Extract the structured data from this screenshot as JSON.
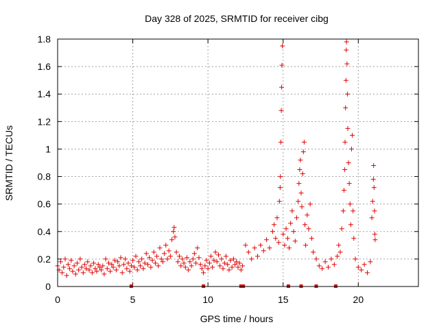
{
  "chart_data": {
    "type": "scatter",
    "title": "Day 328 of 2025, SRMTID for receiver cibg",
    "xlabel": "GPS time / hours",
    "ylabel": "SRMTID / TECUs",
    "xlim": [
      0,
      24
    ],
    "ylim": [
      0,
      1.8
    ],
    "xticks": [
      "0",
      "5",
      "10",
      "15",
      "20"
    ],
    "xtick_values": [
      0,
      5,
      10,
      15,
      20
    ],
    "yticks": [
      "0",
      "0.2",
      "0.4",
      "0.6",
      "0.8",
      "1",
      "1.2",
      "1.4",
      "1.6",
      "1.8"
    ],
    "ytick_values": [
      0,
      0.2,
      0.4,
      0.6,
      0.8,
      1.0,
      1.2,
      1.4,
      1.6,
      1.8
    ],
    "grid": true,
    "marker": "+",
    "color": "#e00000",
    "series": [
      {
        "name": "SRMTID",
        "points": [
          [
            0.0,
            0.15
          ],
          [
            0.1,
            0.12
          ],
          [
            0.2,
            0.18
          ],
          [
            0.3,
            0.1
          ],
          [
            0.4,
            0.14
          ],
          [
            0.5,
            0.2
          ],
          [
            0.6,
            0.08
          ],
          [
            0.7,
            0.16
          ],
          [
            0.8,
            0.13
          ],
          [
            0.9,
            0.19
          ],
          [
            1.0,
            0.11
          ],
          [
            1.1,
            0.15
          ],
          [
            1.2,
            0.09
          ],
          [
            1.3,
            0.17
          ],
          [
            1.4,
            0.12
          ],
          [
            1.5,
            0.2
          ],
          [
            1.6,
            0.14
          ],
          [
            1.7,
            0.1
          ],
          [
            1.8,
            0.16
          ],
          [
            1.9,
            0.13
          ],
          [
            2.0,
            0.18
          ],
          [
            2.1,
            0.12
          ],
          [
            2.2,
            0.15
          ],
          [
            2.3,
            0.1
          ],
          [
            2.4,
            0.17
          ],
          [
            2.5,
            0.13
          ],
          [
            2.6,
            0.11
          ],
          [
            2.7,
            0.16
          ],
          [
            2.8,
            0.14
          ],
          [
            2.9,
            0.12
          ],
          [
            3.0,
            0.15
          ],
          [
            3.1,
            0.09
          ],
          [
            3.2,
            0.2
          ],
          [
            3.3,
            0.13
          ],
          [
            3.4,
            0.17
          ],
          [
            3.5,
            0.11
          ],
          [
            3.6,
            0.16
          ],
          [
            3.7,
            0.14
          ],
          [
            3.8,
            0.19
          ],
          [
            3.9,
            0.12
          ],
          [
            4.0,
            0.18
          ],
          [
            4.1,
            0.15
          ],
          [
            4.2,
            0.21
          ],
          [
            4.3,
            0.1
          ],
          [
            4.4,
            0.16
          ],
          [
            4.5,
            0.2
          ],
          [
            4.6,
            0.13
          ],
          [
            4.7,
            0.17
          ],
          [
            4.8,
            0.11
          ],
          [
            4.9,
            0.15
          ],
          [
            5.0,
            0.19
          ],
          [
            5.1,
            0.14
          ],
          [
            5.2,
            0.22
          ],
          [
            5.3,
            0.12
          ],
          [
            5.4,
            0.18
          ],
          [
            5.5,
            0.15
          ],
          [
            5.6,
            0.2
          ],
          [
            5.7,
            0.13
          ],
          [
            5.8,
            0.17
          ],
          [
            5.9,
            0.24
          ],
          [
            6.0,
            0.16
          ],
          [
            6.1,
            0.21
          ],
          [
            6.2,
            0.14
          ],
          [
            6.3,
            0.19
          ],
          [
            6.4,
            0.25
          ],
          [
            6.5,
            0.17
          ],
          [
            6.6,
            0.22
          ],
          [
            6.7,
            0.15
          ],
          [
            6.8,
            0.28
          ],
          [
            6.9,
            0.2
          ],
          [
            7.0,
            0.18
          ],
          [
            7.1,
            0.24
          ],
          [
            7.2,
            0.3
          ],
          [
            7.3,
            0.2
          ],
          [
            7.4,
            0.26
          ],
          [
            7.5,
            0.22
          ],
          [
            7.6,
            0.34
          ],
          [
            7.7,
            0.4
          ],
          [
            7.75,
            0.43
          ],
          [
            7.8,
            0.36
          ],
          [
            7.9,
            0.25
          ],
          [
            8.0,
            0.18
          ],
          [
            8.1,
            0.22
          ],
          [
            8.2,
            0.15
          ],
          [
            8.3,
            0.2
          ],
          [
            8.4,
            0.17
          ],
          [
            8.5,
            0.14
          ],
          [
            8.6,
            0.21
          ],
          [
            8.7,
            0.12
          ],
          [
            8.8,
            0.18
          ],
          [
            8.9,
            0.15
          ],
          [
            9.0,
            0.2
          ],
          [
            9.1,
            0.24
          ],
          [
            9.2,
            0.17
          ],
          [
            9.3,
            0.28
          ],
          [
            9.4,
            0.21
          ],
          [
            9.5,
            0.16
          ],
          [
            9.6,
            0.13
          ],
          [
            9.7,
            0.1
          ],
          [
            9.8,
            0.15
          ],
          [
            9.9,
            0.19
          ],
          [
            10.0,
            0.13
          ],
          [
            10.1,
            0.17
          ],
          [
            10.2,
            0.22
          ],
          [
            10.3,
            0.14
          ],
          [
            10.4,
            0.19
          ],
          [
            10.5,
            0.25
          ],
          [
            10.6,
            0.18
          ],
          [
            10.7,
            0.23
          ],
          [
            10.8,
            0.15
          ],
          [
            10.9,
            0.2
          ],
          [
            11.0,
            0.13
          ],
          [
            11.1,
            0.17
          ],
          [
            11.2,
            0.22
          ],
          [
            11.3,
            0.16
          ],
          [
            11.4,
            0.12
          ],
          [
            11.5,
            0.19
          ],
          [
            11.6,
            0.14
          ],
          [
            11.7,
            0.2
          ],
          [
            11.8,
            0.16
          ],
          [
            11.9,
            0.18
          ],
          [
            12.0,
            0.14
          ],
          [
            12.1,
            0.17
          ],
          [
            12.2,
            0.12
          ],
          [
            12.3,
            0.15
          ],
          [
            12.5,
            0.3
          ],
          [
            12.7,
            0.25
          ],
          [
            12.9,
            0.2
          ],
          [
            13.1,
            0.28
          ],
          [
            13.3,
            0.22
          ],
          [
            13.5,
            0.3
          ],
          [
            13.7,
            0.26
          ],
          [
            13.9,
            0.34
          ],
          [
            14.1,
            0.28
          ],
          [
            14.3,
            0.4
          ],
          [
            14.4,
            0.45
          ],
          [
            14.5,
            0.35
          ],
          [
            14.6,
            0.5
          ],
          [
            14.7,
            0.32
          ],
          [
            14.75,
            0.62
          ],
          [
            14.8,
            0.72
          ],
          [
            14.82,
            0.8
          ],
          [
            14.85,
            1.05
          ],
          [
            14.88,
            1.28
          ],
          [
            14.9,
            1.45
          ],
          [
            14.92,
            1.61
          ],
          [
            14.95,
            1.75
          ],
          [
            15.0,
            0.38
          ],
          [
            15.1,
            0.3
          ],
          [
            15.2,
            0.42
          ],
          [
            15.3,
            0.35
          ],
          [
            15.4,
            0.28
          ],
          [
            15.5,
            0.46
          ],
          [
            15.6,
            0.55
          ],
          [
            15.7,
            0.4
          ],
          [
            15.8,
            0.33
          ],
          [
            15.9,
            0.5
          ],
          [
            16.0,
            0.62
          ],
          [
            16.05,
            0.75
          ],
          [
            16.1,
            0.85
          ],
          [
            16.15,
            0.92
          ],
          [
            16.2,
            0.68
          ],
          [
            16.25,
            0.58
          ],
          [
            16.3,
            0.82
          ],
          [
            16.35,
            0.98
          ],
          [
            16.4,
            1.05
          ],
          [
            16.45,
            0.45
          ],
          [
            16.5,
            0.3
          ],
          [
            16.6,
            0.52
          ],
          [
            16.7,
            0.42
          ],
          [
            16.8,
            0.6
          ],
          [
            16.9,
            0.35
          ],
          [
            17.0,
            0.25
          ],
          [
            17.2,
            0.2
          ],
          [
            17.4,
            0.15
          ],
          [
            17.6,
            0.13
          ],
          [
            17.8,
            0.18
          ],
          [
            18.0,
            0.14
          ],
          [
            18.2,
            0.2
          ],
          [
            18.4,
            0.16
          ],
          [
            18.6,
            0.22
          ],
          [
            18.7,
            0.3
          ],
          [
            18.8,
            0.25
          ],
          [
            18.9,
            0.42
          ],
          [
            19.0,
            0.55
          ],
          [
            19.05,
            0.7
          ],
          [
            19.1,
            0.85
          ],
          [
            19.12,
            1.05
          ],
          [
            19.15,
            1.3
          ],
          [
            19.18,
            1.5
          ],
          [
            19.2,
            1.72
          ],
          [
            19.22,
            1.78
          ],
          [
            19.25,
            1.62
          ],
          [
            19.28,
            1.4
          ],
          [
            19.3,
            1.15
          ],
          [
            19.35,
            0.9
          ],
          [
            19.4,
            0.75
          ],
          [
            19.45,
            0.6
          ],
          [
            19.5,
            0.45
          ],
          [
            19.55,
            1.0
          ],
          [
            19.6,
            1.1
          ],
          [
            19.65,
            0.55
          ],
          [
            19.7,
            0.35
          ],
          [
            19.8,
            0.2
          ],
          [
            20.0,
            0.14
          ],
          [
            20.2,
            0.12
          ],
          [
            20.4,
            0.16
          ],
          [
            20.6,
            0.1
          ],
          [
            20.8,
            0.18
          ],
          [
            20.9,
            0.5
          ],
          [
            20.95,
            0.62
          ],
          [
            21.0,
            0.78
          ],
          [
            21.02,
            0.88
          ],
          [
            21.05,
            0.72
          ],
          [
            21.08,
            0.55
          ],
          [
            21.1,
            0.38
          ],
          [
            21.12,
            0.34
          ]
        ]
      }
    ],
    "gap_markers_x": [
      4.9,
      9.7,
      12.2,
      12.35,
      15.35,
      16.2,
      17.2,
      18.5
    ]
  }
}
